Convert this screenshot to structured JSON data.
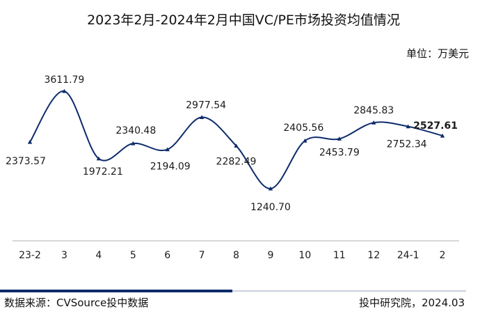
{
  "header": {
    "title": "2023年2月-2024年2月中国VC/PE市场投资均值情况",
    "unit": "单位：万美元"
  },
  "footer": {
    "source": "数据来源：CVSource投中数据",
    "credit": "投中研究院，2024.03"
  },
  "colors": {
    "line": "#0d2b6b",
    "baseline": "#b0b0b0",
    "footer_dark": "#0d2b6b",
    "footer_light": "#c9d0dc"
  },
  "chart_data": {
    "type": "line",
    "title": "2023年2月-2024年2月中国VC/PE市场投资均值情况",
    "xlabel": "",
    "ylabel": "",
    "unit": "万美元",
    "categories": [
      "23-2",
      "3",
      "4",
      "5",
      "6",
      "7",
      "8",
      "9",
      "10",
      "11",
      "12",
      "24-1",
      "2"
    ],
    "values": [
      2373.57,
      3611.79,
      1972.21,
      2340.48,
      2194.09,
      2977.54,
      2282.49,
      1240.7,
      2405.56,
      2453.79,
      2845.83,
      2752.34,
      2527.61
    ],
    "labels": [
      "2373.57",
      "3611.79",
      "1972.21",
      "2340.48",
      "2194.09",
      "2977.54",
      "2282.49",
      "1240.70",
      "2405.56",
      "2453.79",
      "2845.83",
      "2752.34",
      "2527.61"
    ],
    "ylim": [
      0,
      4500
    ],
    "grid": false,
    "legend": "none",
    "smooth": true,
    "highlight_last_label": true
  }
}
